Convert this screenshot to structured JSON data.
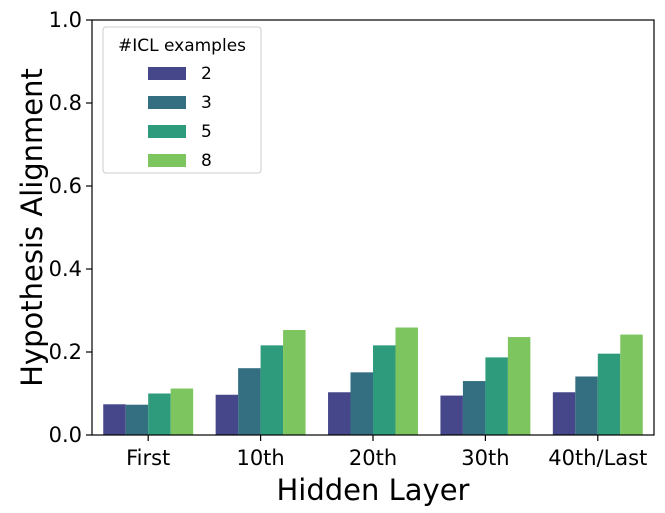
{
  "chart_data": {
    "type": "bar",
    "title": "",
    "xlabel": "Hidden Layer",
    "ylabel": "Hypothesis Alignment",
    "categories": [
      "First",
      "10th",
      "20th",
      "30th",
      "40th/Last"
    ],
    "ylim": [
      0,
      1.0
    ],
    "yticks": [
      "0.0",
      "0.2",
      "0.4",
      "0.6",
      "0.8",
      "1.0"
    ],
    "grid": false,
    "legend": {
      "title": "#ICL examples",
      "placement": "top-left"
    },
    "series": [
      {
        "name": "2",
        "color": "#46468a",
        "values": [
          0.074,
          0.097,
          0.103,
          0.095,
          0.103
        ]
      },
      {
        "name": "3",
        "color": "#336f80",
        "values": [
          0.073,
          0.161,
          0.151,
          0.13,
          0.141
        ]
      },
      {
        "name": "5",
        "color": "#2d9b7c",
        "values": [
          0.1,
          0.216,
          0.216,
          0.187,
          0.196
        ]
      },
      {
        "name": "8",
        "color": "#7dc55e",
        "values": [
          0.112,
          0.253,
          0.259,
          0.236,
          0.242
        ]
      }
    ]
  }
}
